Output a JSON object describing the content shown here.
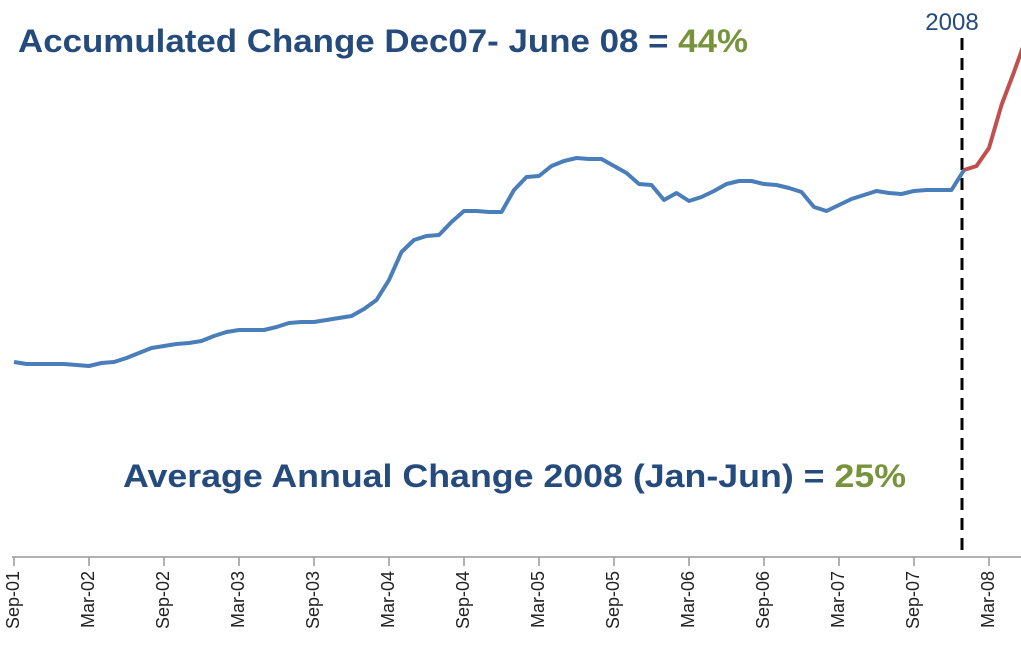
{
  "chart_data": {
    "type": "line",
    "annotations": [
      {
        "text": "Accumulated Change Dec07- June 08 = ",
        "highlight": "44%"
      },
      {
        "text": "Average  Annual Change 2008 (Jan-Jun) = ",
        "highlight": "25%"
      }
    ],
    "divider_label": "2008",
    "categories": [
      "Sep-01",
      null,
      null,
      null,
      null,
      null,
      "Mar-02",
      null,
      null,
      null,
      null,
      null,
      "Sep-02",
      null,
      null,
      null,
      null,
      null,
      "Mar-03",
      null,
      null,
      null,
      null,
      null,
      "Sep-03",
      null,
      null,
      null,
      null,
      null,
      "Mar-04",
      null,
      null,
      null,
      null,
      null,
      "Sep-04",
      null,
      null,
      null,
      null,
      null,
      "Mar-05",
      null,
      null,
      null,
      null,
      null,
      "Sep-05",
      null,
      null,
      null,
      null,
      null,
      "Mar-06",
      null,
      null,
      null,
      null,
      null,
      "Sep-06",
      null,
      null,
      null,
      null,
      null,
      "Mar-07",
      null,
      null,
      null,
      null,
      null,
      "Sep-07",
      null,
      null,
      null,
      null,
      null,
      "Mar-08",
      null,
      null,
      null
    ],
    "series": [
      {
        "color": "#4a7ebb",
        "values": [
          195,
          193,
          193,
          193,
          193,
          192,
          191,
          194,
          195,
          199,
          204,
          209,
          211,
          213,
          214,
          216,
          221,
          225,
          227,
          227,
          227,
          230,
          234,
          235,
          235,
          237,
          239,
          241,
          248,
          257,
          277,
          305,
          317,
          321,
          322,
          335,
          346,
          346,
          345,
          345,
          367,
          380,
          381,
          391,
          396,
          399,
          398,
          398,
          391,
          384,
          373,
          372,
          357,
          364,
          356,
          360,
          366,
          373,
          376,
          376,
          373,
          372,
          369,
          365,
          350,
          346,
          352,
          358,
          362,
          366,
          364,
          363,
          366,
          367,
          367,
          367,
          387,
          null,
          null,
          null,
          null,
          null
        ]
      },
      {
        "color": "#c0504d",
        "values": [
          null,
          null,
          null,
          null,
          null,
          null,
          null,
          null,
          null,
          null,
          null,
          null,
          null,
          null,
          null,
          null,
          null,
          null,
          null,
          null,
          null,
          null,
          null,
          null,
          null,
          null,
          null,
          null,
          null,
          null,
          null,
          null,
          null,
          null,
          null,
          null,
          null,
          null,
          null,
          null,
          null,
          null,
          null,
          null,
          null,
          null,
          null,
          null,
          null,
          null,
          null,
          null,
          null,
          null,
          null,
          null,
          null,
          null,
          null,
          null,
          null,
          null,
          null,
          null,
          null,
          null,
          null,
          null,
          null,
          null,
          null,
          null,
          null,
          null,
          null,
          null,
          387,
          391,
          409,
          452,
          485,
          520
        ]
      }
    ],
    "ylim": [
      0,
      557
    ],
    "text_color": "#254a7c",
    "highlight_color": "#77933c"
  }
}
